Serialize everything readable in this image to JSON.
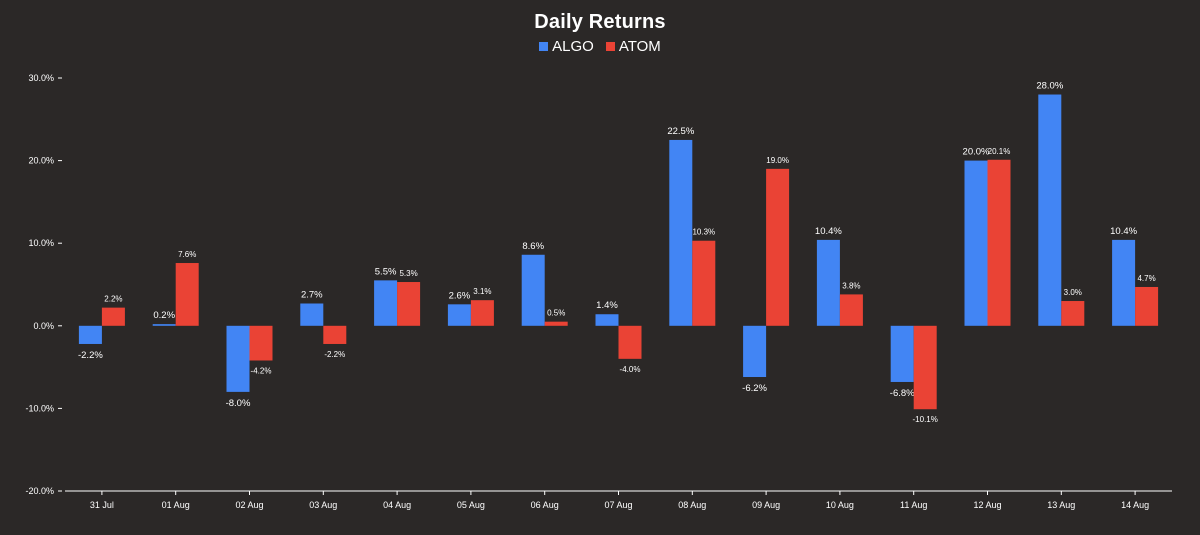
{
  "chart_data": {
    "type": "bar",
    "title": "Daily Returns",
    "xlabel": "",
    "ylabel": "",
    "ylim": [
      -20,
      30
    ],
    "yticks": [
      -20,
      -10,
      0,
      10,
      20,
      30
    ],
    "ytick_labels": [
      "-20.0%",
      "-10.0%",
      "0.0%",
      "10.0%",
      "20.0%",
      "30.0%"
    ],
    "categories": [
      "31 Jul",
      "01 Aug",
      "02 Aug",
      "03 Aug",
      "04 Aug",
      "05 Aug",
      "06 Aug",
      "07 Aug",
      "08 Aug",
      "09 Aug",
      "10 Aug",
      "11 Aug",
      "12 Aug",
      "13 Aug",
      "14 Aug"
    ],
    "series": [
      {
        "name": "ALGO",
        "color": "#4285f4",
        "values": [
          -2.2,
          0.2,
          -8.0,
          2.7,
          5.5,
          2.6,
          8.6,
          1.4,
          22.5,
          -6.2,
          10.4,
          -6.8,
          20.0,
          28.0,
          10.4
        ],
        "labels": [
          "-2.2%",
          "0.2%",
          "-8.0%",
          "2.7%",
          "5.5%",
          "2.6%",
          "8.6%",
          "1.4%",
          "22.5%",
          "-6.2%",
          "10.4%",
          "-6.8%",
          "20.0%",
          "28.0%",
          "10.4%"
        ]
      },
      {
        "name": "ATOM",
        "color": "#ea4335",
        "values": [
          2.2,
          7.6,
          -4.2,
          -2.2,
          5.3,
          3.1,
          0.5,
          -4.0,
          10.3,
          19.0,
          3.8,
          -10.1,
          20.1,
          3.0,
          4.7
        ],
        "labels": [
          "2.2%",
          "7.6%",
          "-4.2%",
          "-2.2%",
          "5.3%",
          "3.1%",
          "0.5%",
          "-4.0%",
          "10.3%",
          "19.0%",
          "3.8%",
          "-10.1%",
          "20.1%",
          "3.0%",
          "4.7%"
        ]
      }
    ],
    "legend_position": "top-center",
    "grid": false
  }
}
